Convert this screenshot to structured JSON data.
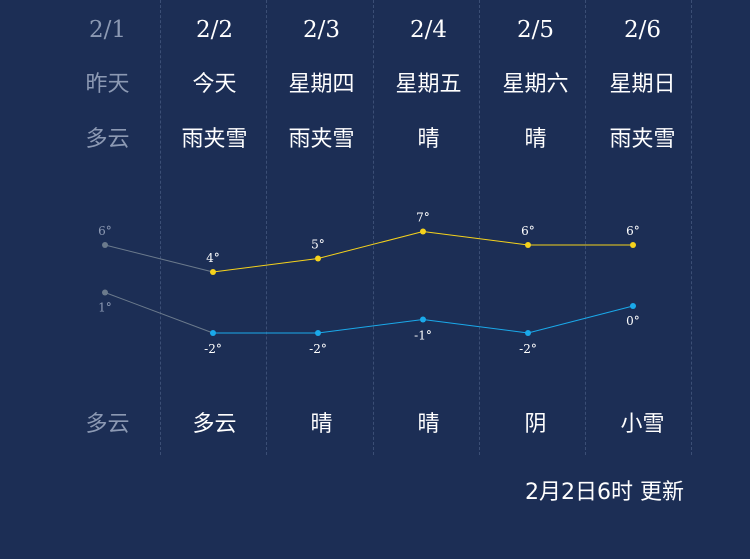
{
  "colors": {
    "background": "#1c2e55",
    "high_line": "#f5d21c",
    "low_line": "#1aa9ea",
    "past_text": "#8c99b3",
    "past_line": "#6b7a8c"
  },
  "days": [
    {
      "date": "2/1",
      "weekday": "昨天",
      "day_weather": "多云",
      "night_weather": "多云",
      "past": true
    },
    {
      "date": "2/2",
      "weekday": "今天",
      "day_weather": "雨夹雪",
      "night_weather": "多云",
      "past": false
    },
    {
      "date": "2/3",
      "weekday": "星期四",
      "day_weather": "雨夹雪",
      "night_weather": "晴",
      "past": false
    },
    {
      "date": "2/4",
      "weekday": "星期五",
      "day_weather": "晴",
      "night_weather": "晴",
      "past": false
    },
    {
      "date": "2/5",
      "weekday": "星期六",
      "day_weather": "晴",
      "night_weather": "阴",
      "past": false
    },
    {
      "date": "2/6",
      "weekday": "星期日",
      "day_weather": "雨夹雪",
      "night_weather": "小雪",
      "past": false
    }
  ],
  "chart_data": {
    "type": "line",
    "x": [
      "2/1",
      "2/2",
      "2/3",
      "2/4",
      "2/5",
      "2/6"
    ],
    "series": [
      {
        "values": [
          6,
          4,
          5,
          7,
          6,
          6
        ],
        "labels": [
          "6°",
          "4°",
          "5°",
          "7°",
          "6°",
          "6°"
        ]
      },
      {
        "values": [
          1,
          -2,
          -2,
          -1,
          -2,
          0
        ],
        "labels": [
          "1°",
          "-2°",
          "-2°",
          "-1°",
          "-2°",
          "0°"
        ]
      }
    ]
  },
  "update_text": "2月2日6时 更新"
}
